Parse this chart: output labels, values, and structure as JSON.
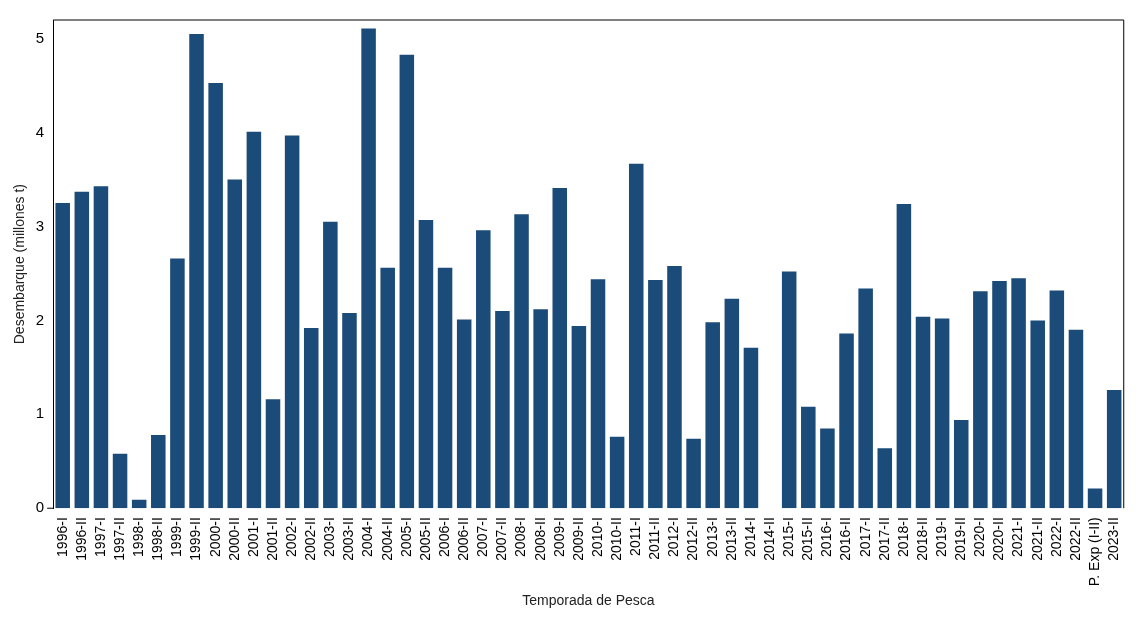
{
  "chart_data": {
    "type": "bar",
    "xlabel": "Temporada de Pesca",
    "ylabel": "Desembarque (millones t)",
    "categories": [
      "1996-I",
      "1996-II",
      "1997-I",
      "1997-II",
      "1998-I",
      "1998-II",
      "1999-I",
      "1999-II",
      "2000-I",
      "2000-II",
      "2001-I",
      "2001-II",
      "2002-I",
      "2002-II",
      "2003-I",
      "2003-II",
      "2004-I",
      "2004-II",
      "2005-I",
      "2005-II",
      "2006-I",
      "2006-II",
      "2007-I",
      "2007-II",
      "2008-I",
      "2008-II",
      "2009-I",
      "2009-II",
      "2010-I",
      "2010-II",
      "2011-I",
      "2011-II",
      "2012-I",
      "2012-II",
      "2013-I",
      "2013-II",
      "2014-I",
      "2014-II",
      "2015-I",
      "2015-II",
      "2016-I",
      "2016-II",
      "2017-I",
      "2017-II",
      "2018-I",
      "2018-II",
      "2019-I",
      "2019-II",
      "2020-I",
      "2020-II",
      "2021-I",
      "2021-II",
      "2022-I",
      "2022-II",
      "P. Exp (I-II)",
      "2023-II"
    ],
    "values": [
      3.25,
      3.37,
      3.43,
      0.58,
      0.09,
      0.78,
      2.66,
      5.05,
      4.53,
      3.5,
      4.01,
      1.16,
      3.97,
      1.92,
      3.05,
      2.08,
      5.11,
      2.56,
      4.83,
      3.07,
      2.56,
      2.01,
      2.96,
      2.1,
      3.13,
      2.12,
      3.41,
      1.94,
      2.44,
      0.76,
      3.67,
      2.43,
      2.58,
      0.74,
      1.98,
      2.23,
      1.71,
      null,
      2.52,
      1.08,
      0.85,
      1.86,
      2.34,
      0.64,
      3.24,
      2.04,
      2.02,
      0.94,
      2.31,
      2.42,
      2.45,
      2.0,
      2.32,
      1.9,
      0.21,
      1.26
    ],
    "color": "#1b4b78",
    "ylim": [
      0,
      5.2
    ],
    "yticks": [
      0,
      1,
      2,
      3,
      4,
      5
    ],
    "grid": false,
    "legend": false
  }
}
